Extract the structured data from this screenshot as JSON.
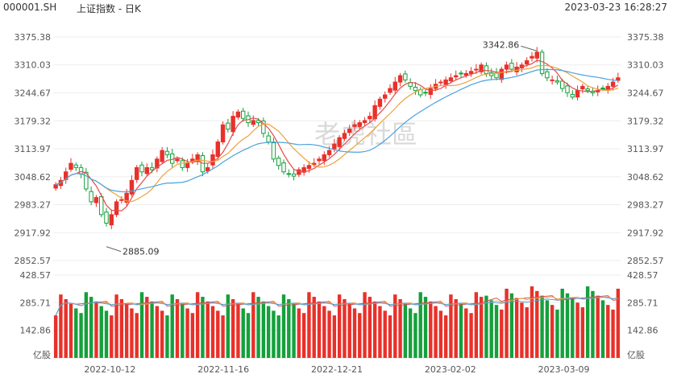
{
  "header": {
    "symbol": "000001.SH",
    "name": "上证指数 - 日K",
    "timestamp": "2023-03-23 16:28:27"
  },
  "watermark": "老虎社區",
  "colors": {
    "up": "#e8312a",
    "down": "#15a03b",
    "ma5": "#e34a4a",
    "ma10": "#f0a03c",
    "ma20": "#4aa3df"
  },
  "price_axis": {
    "ticks": [
      "3375.38",
      "3310.03",
      "3244.67",
      "3179.32",
      "3113.97",
      "3048.62",
      "2983.27",
      "2917.92",
      "2852.57"
    ]
  },
  "volume_axis": {
    "ticks": [
      "428.57",
      "285.71",
      "142.86"
    ],
    "unit": "亿股"
  },
  "x_axis": {
    "labels": [
      "2022-10-12",
      "2022-11-16",
      "2022-12-21",
      "2023-02-02",
      "2023-03-09"
    ]
  },
  "annotations": {
    "high": "3342.86",
    "low": "2885.09"
  },
  "chart_data": {
    "type": "candlestick",
    "ylim": [
      2852.57,
      3375.38
    ],
    "volume_ylim": [
      0,
      428.57
    ],
    "series_note": "daily OHLC approximated from screenshot",
    "close": [
      3030,
      3040,
      3060,
      3080,
      3070,
      3055,
      3020,
      2990,
      3000,
      2960,
      2940,
      2960,
      2990,
      2995,
      3010,
      3040,
      3070,
      3060,
      3070,
      3065,
      3090,
      3110,
      3100,
      3080,
      3090,
      3070,
      3080,
      3090,
      3100,
      3060,
      3070,
      3100,
      3130,
      3170,
      3160,
      3190,
      3200,
      3185,
      3175,
      3180,
      3175,
      3150,
      3130,
      3090,
      3075,
      3060,
      3055,
      3050,
      3065,
      3070,
      3075,
      3080,
      3090,
      3100,
      3110,
      3125,
      3140,
      3150,
      3160,
      3170,
      3175,
      3180,
      3190,
      3215,
      3230,
      3240,
      3255,
      3270,
      3285,
      3275,
      3260,
      3250,
      3240,
      3245,
      3255,
      3265,
      3270,
      3275,
      3280,
      3285,
      3290,
      3290,
      3295,
      3300,
      3310,
      3290,
      3285,
      3280,
      3300,
      3310,
      3300,
      3305,
      3310,
      3320,
      3330,
      3340,
      3290,
      3280,
      3275,
      3270,
      3255,
      3245,
      3235,
      3250,
      3260,
      3250,
      3245,
      3250,
      3255,
      3260,
      3270,
      3280
    ]
  }
}
